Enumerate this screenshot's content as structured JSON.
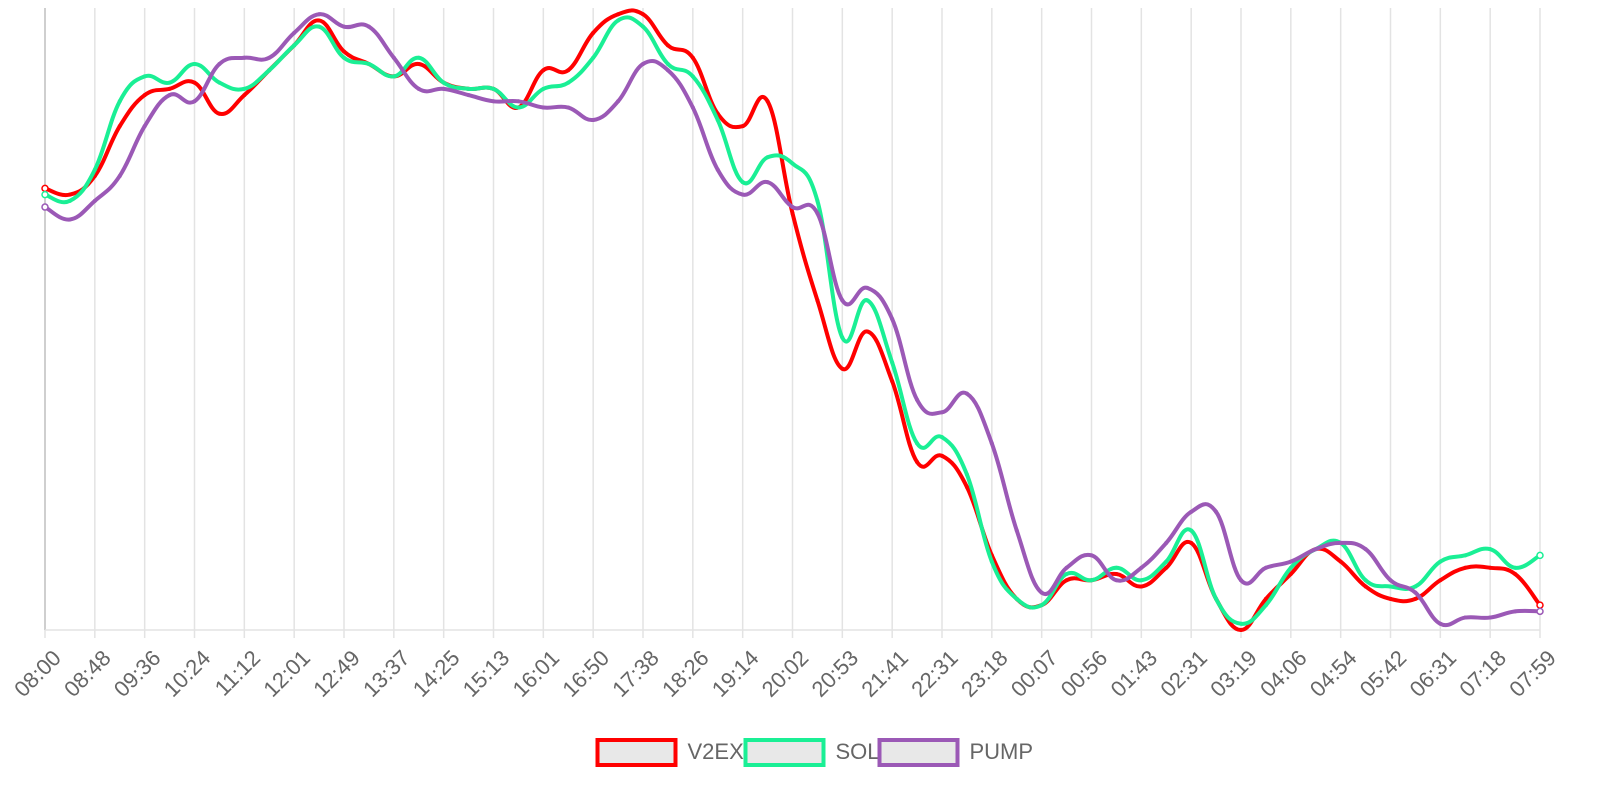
{
  "chart_data": {
    "type": "line",
    "categories": [
      "08:00",
      null,
      "08:48",
      null,
      "09:36",
      null,
      "10:24",
      null,
      "11:12",
      null,
      "12:01",
      null,
      "12:49",
      null,
      "13:37",
      null,
      "14:25",
      null,
      "15:13",
      null,
      "16:01",
      null,
      "16:50",
      null,
      "17:38",
      null,
      "18:26",
      null,
      "19:14",
      null,
      "20:02",
      null,
      "20:53",
      null,
      "21:41",
      null,
      "22:31",
      null,
      "23:18",
      null,
      "00:07",
      null,
      "00:56",
      null,
      "01:43",
      null,
      "02:31",
      null,
      "03:19",
      null,
      "04:06",
      null,
      "04:54",
      null,
      "05:42",
      null,
      "06:31",
      null,
      "07:18",
      null,
      "07:59"
    ],
    "series": [
      {
        "name": "V2EX",
        "color": "#ff0000",
        "values": [
          71,
          70,
          73,
          81,
          86,
          87,
          88,
          83,
          86,
          90,
          94,
          98,
          93,
          91,
          89,
          91,
          88,
          87,
          87,
          84,
          90,
          90,
          96,
          99,
          99,
          94,
          92,
          83,
          81,
          85,
          67,
          53,
          42,
          48,
          40,
          27,
          28,
          23,
          12,
          5,
          4,
          8,
          8,
          9,
          7,
          10,
          14,
          5,
          0,
          5,
          9,
          13,
          11,
          7,
          5,
          5,
          8,
          10,
          10,
          9,
          4
        ]
      },
      {
        "name": "SOL",
        "color": "#1aef95",
        "values": [
          70,
          69,
          74,
          85,
          89,
          88,
          91,
          88,
          87,
          90,
          94,
          97,
          92,
          91,
          89,
          92,
          88,
          87,
          87,
          84,
          87,
          88,
          92,
          98,
          97,
          91,
          89,
          82,
          72,
          76,
          75,
          69,
          47,
          53,
          43,
          30,
          31,
          25,
          11,
          5,
          4,
          9,
          8,
          10,
          8,
          11,
          16,
          5,
          1,
          4,
          10,
          13,
          14,
          8,
          7,
          7,
          11,
          12,
          13,
          10,
          12
        ]
      },
      {
        "name": "PUMP",
        "color": "#9b59b6",
        "values": [
          68,
          66,
          69,
          73,
          81,
          86,
          85,
          91,
          92,
          92,
          96,
          99,
          97,
          97,
          92,
          87,
          87,
          86,
          85,
          85,
          84,
          84,
          82,
          85,
          91,
          90,
          84,
          74,
          70,
          72,
          68,
          67,
          53,
          55,
          50,
          37,
          35,
          38,
          30,
          16,
          6,
          10,
          12,
          8,
          10,
          14,
          19,
          19,
          8,
          10,
          11,
          13,
          14,
          13,
          8,
          6,
          1,
          2,
          2,
          3,
          3
        ]
      }
    ],
    "ylim": [
      0,
      100
    ],
    "grid": true
  }
}
